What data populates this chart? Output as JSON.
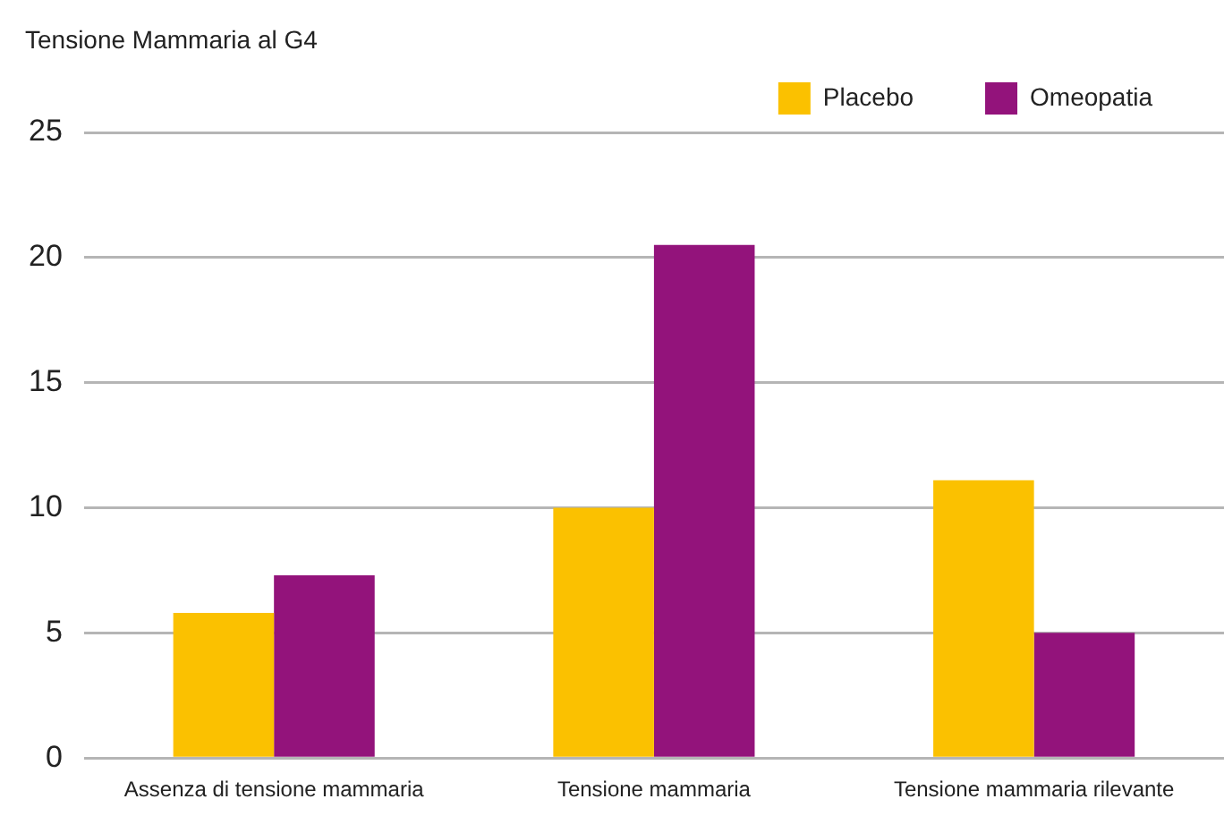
{
  "chart_data": {
    "type": "bar",
    "title": "Tensione Mammaria al G4",
    "categories": [
      "Assenza di tensione mammaria",
      "Tensione mammaria",
      "Tensione mammaria rilevante"
    ],
    "series": [
      {
        "name": "Placebo",
        "color": "#fbc100",
        "values": [
          5.8,
          10,
          11.1
        ]
      },
      {
        "name": "Omeopatia",
        "color": "#93137b",
        "values": [
          7.3,
          20.5,
          5
        ]
      }
    ],
    "ylim": [
      0,
      25
    ],
    "yticks": [
      0,
      5,
      10,
      15,
      20,
      25
    ],
    "grid": "y",
    "legend": "top right"
  }
}
